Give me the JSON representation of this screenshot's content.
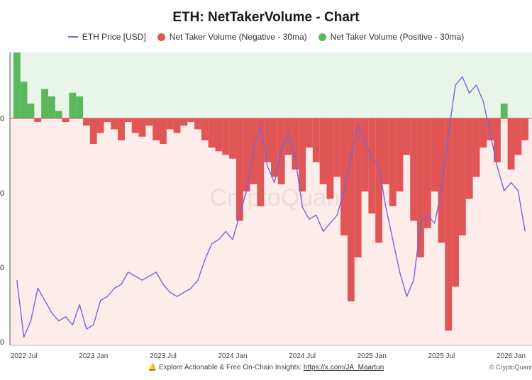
{
  "header": {
    "title": "ETH: NetTakerVolume - Chart"
  },
  "legend": {
    "price": "ETH Price [USD]",
    "negative": "Net Taker Volume (Negative - 30ma)",
    "positive": "Net Taker Volume (Positive - 30ma)"
  },
  "watermark": "CryptoQuant",
  "footer": {
    "bell_icon": "bell-icon",
    "text": "Explore Actionable & Free On-Chain Insights: ",
    "link": "https://x.com/JA_Maartun",
    "brand": "© CryptoQuant"
  },
  "colors": {
    "price": "#7b62d9",
    "negative": "#e05555",
    "positive": "#5cb85c",
    "neg_bg": "#fdecea",
    "pos_bg": "#eaf5ea"
  },
  "chart_data": {
    "type": "bar",
    "x_axis": {
      "type": "date",
      "range": [
        "2022-06",
        "2026-02"
      ],
      "ticks": [
        "2022 Jul",
        "2023 Jan",
        "2023 Jul",
        "2024 Jan",
        "2024 Jul",
        "2025 Jan",
        "2025 Jul",
        "2026 Jan"
      ]
    },
    "y_axis_left_ticks": [
      "0",
      "0",
      "0",
      "0"
    ],
    "legend_position": "top",
    "grid": false,
    "net_taker_volume": {
      "x": [
        2022.45,
        2022.5,
        2022.55,
        2022.6,
        2022.65,
        2022.7,
        2022.75,
        2022.8,
        2022.85,
        2022.9,
        2022.95,
        2023.0,
        2023.05,
        2023.1,
        2023.15,
        2023.2,
        2023.25,
        2023.3,
        2023.35,
        2023.4,
        2023.45,
        2023.5,
        2023.55,
        2023.6,
        2023.65,
        2023.7,
        2023.75,
        2023.8,
        2023.85,
        2023.9,
        2023.95,
        2024.0,
        2024.05,
        2024.1,
        2024.15,
        2024.2,
        2024.25,
        2024.3,
        2024.35,
        2024.4,
        2024.45,
        2024.5,
        2024.55,
        2024.6,
        2024.65,
        2024.7,
        2024.75,
        2024.8,
        2024.85,
        2024.9,
        2024.95,
        2025.0,
        2025.05,
        2025.1,
        2025.15,
        2025.2,
        2025.25,
        2025.3,
        2025.35,
        2025.4,
        2025.45,
        2025.5,
        2025.55,
        2025.6,
        2025.65,
        2025.7,
        2025.75,
        2025.8,
        2025.85,
        2025.9,
        2025.95,
        2026.0,
        2026.05,
        2026.1
      ],
      "values": [
        0.9,
        0.5,
        0.2,
        -0.05,
        0.4,
        0.3,
        0.1,
        -0.05,
        0.35,
        0.3,
        -0.1,
        -0.35,
        -0.2,
        -0.05,
        -0.15,
        -0.3,
        -0.05,
        -0.2,
        -0.25,
        -0.1,
        -0.3,
        -0.35,
        -0.15,
        -0.2,
        -0.1,
        -0.05,
        -0.15,
        -0.3,
        -0.4,
        -0.45,
        -0.5,
        -0.55,
        -1.4,
        -1.0,
        -0.9,
        -1.2,
        -0.6,
        -0.8,
        -0.9,
        -0.5,
        -0.7,
        -1.0,
        -0.4,
        -0.6,
        -0.9,
        -1.1,
        -0.8,
        -1.6,
        -2.5,
        -1.9,
        -1.0,
        -1.3,
        -1.7,
        -0.9,
        -1.2,
        -1.0,
        -0.5,
        -1.4,
        -1.9,
        -1.5,
        -1.0,
        -1.7,
        -2.9,
        -2.3,
        -1.6,
        -1.1,
        -0.8,
        -0.4,
        -0.3,
        -0.6,
        0.2,
        -0.7,
        -0.5,
        -0.3
      ],
      "ylim": [
        -3.1,
        0.9
      ]
    },
    "eth_price": {
      "name": "ETH Price [USD]",
      "x": [
        2022.45,
        2022.5,
        2022.55,
        2022.6,
        2022.65,
        2022.7,
        2022.75,
        2022.8,
        2022.85,
        2022.9,
        2022.95,
        2023.0,
        2023.05,
        2023.1,
        2023.15,
        2023.2,
        2023.25,
        2023.3,
        2023.35,
        2023.4,
        2023.45,
        2023.5,
        2023.55,
        2023.6,
        2023.65,
        2023.7,
        2023.75,
        2023.8,
        2023.85,
        2023.9,
        2023.95,
        2024.0,
        2024.05,
        2024.1,
        2024.15,
        2024.2,
        2024.25,
        2024.3,
        2024.35,
        2024.4,
        2024.45,
        2024.5,
        2024.55,
        2024.6,
        2024.65,
        2024.7,
        2024.75,
        2024.8,
        2024.85,
        2024.9,
        2024.95,
        2025.0,
        2025.05,
        2025.1,
        2025.15,
        2025.2,
        2025.25,
        2025.3,
        2025.35,
        2025.4,
        2025.45,
        2025.5,
        2025.55,
        2025.6,
        2025.65,
        2025.7,
        2025.75,
        2025.8,
        2025.85,
        2025.9,
        2025.95,
        2026.0,
        2026.05,
        2026.1
      ],
      "values": [
        1800,
        1100,
        1300,
        1700,
        1550,
        1400,
        1300,
        1350,
        1250,
        1500,
        1200,
        1250,
        1550,
        1600,
        1700,
        1750,
        1900,
        1850,
        1800,
        1850,
        1900,
        1750,
        1650,
        1600,
        1650,
        1700,
        1800,
        2050,
        2250,
        2300,
        2400,
        2300,
        2600,
        2900,
        3400,
        3700,
        3200,
        3000,
        3400,
        3600,
        3300,
        2700,
        2550,
        2600,
        2400,
        2500,
        2600,
        2900,
        3300,
        3700,
        3500,
        3300,
        3200,
        2700,
        2300,
        1900,
        1600,
        1800,
        2500,
        2600,
        2500,
        2900,
        3600,
        4200,
        4300,
        4100,
        4200,
        4000,
        3600,
        3200,
        2900,
        3000,
        2900,
        2400
      ],
      "ylim": [
        1000,
        4600
      ]
    }
  }
}
